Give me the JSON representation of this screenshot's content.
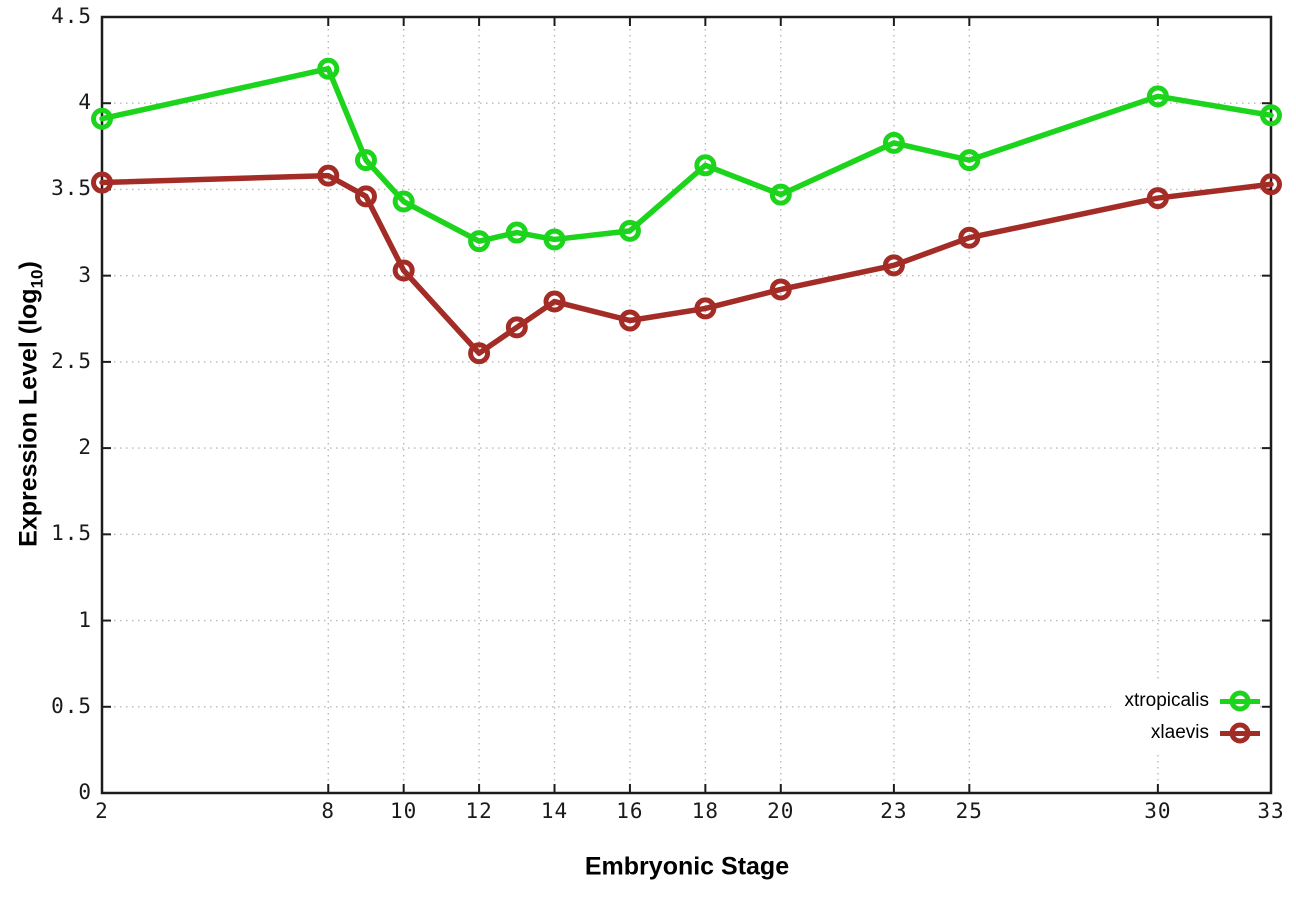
{
  "chart_data": {
    "type": "line",
    "title": "",
    "xlabel": "Embryonic Stage",
    "ylabel": {
      "prefix": "Expression Level (log",
      "sub": "10",
      "suffix": ")"
    },
    "x": [
      2,
      8,
      9,
      10,
      12,
      13,
      14,
      16,
      18,
      20,
      23,
      25,
      30,
      33
    ],
    "series": [
      {
        "name": "xtropicalis",
        "color": "#1bd41b",
        "values": [
          3.91,
          4.2,
          3.67,
          3.43,
          3.2,
          3.25,
          3.21,
          3.26,
          3.64,
          3.47,
          3.77,
          3.67,
          4.04,
          3.93
        ]
      },
      {
        "name": "xlaevis",
        "color": "#a32c26",
        "values": [
          3.54,
          3.58,
          3.46,
          3.03,
          2.55,
          2.7,
          2.85,
          2.74,
          2.81,
          2.92,
          3.06,
          3.22,
          3.45,
          3.53
        ]
      }
    ],
    "xlim": [
      2,
      33
    ],
    "ylim": [
      0,
      4.5
    ],
    "xtick_values": [
      2,
      8,
      10,
      12,
      14,
      16,
      18,
      20,
      23,
      25,
      30,
      33
    ],
    "xtick_labels": [
      "2",
      "8",
      "10",
      "12",
      "14",
      "16",
      "18",
      "20",
      "23",
      "25",
      "30",
      "33"
    ],
    "ytick_values": [
      0,
      0.5,
      1,
      1.5,
      2,
      2.5,
      3,
      3.5,
      4,
      4.5
    ],
    "ytick_labels": [
      "0",
      "0.5",
      "1",
      "1.5",
      "2",
      "2.5",
      "3",
      "3.5",
      "4",
      "4.5"
    ],
    "grid": true,
    "legend_position": "bottom-right",
    "colors": {
      "grid": "#b8b8b8",
      "axis": "#1c1c1c",
      "tick_text": "#1a1a1a",
      "background": "#ffffff"
    }
  }
}
